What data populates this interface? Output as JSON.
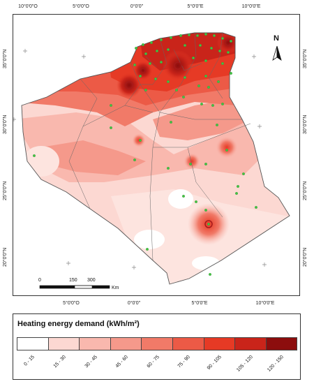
{
  "top_axis_labels": [
    "10°0'0\"O",
    "5°0'0\"O",
    "0°0'0\"",
    "5°0'0\"E",
    "10°0'0\"E"
  ],
  "bottom_axis_labels": [
    "5°0'0\"O",
    "0°0'0\"",
    "5°0'0\"E",
    "10°0'0\"E"
  ],
  "left_axis_labels": [
    "35°0'0\"N",
    "30°0'0\"N",
    "25°0'0\"N",
    "20°0'0\"N"
  ],
  "right_axis_labels": [
    "35°0'0\"N",
    "30°0'0\"N",
    "25°0'0\"N",
    "20°0'0\"N"
  ],
  "north_arrow": {
    "label": "N",
    "icon": "north-arrow-icon"
  },
  "scale_bar": {
    "ticks": [
      "0",
      "150",
      "300"
    ],
    "unit": "Km"
  },
  "legend": {
    "title": "Heating energy demand (kWh/m²)",
    "classes": [
      {
        "label": "0 - 15",
        "color": "#ffffff"
      },
      {
        "label": "15 - 30",
        "color": "#fcd8d2"
      },
      {
        "label": "30 - 45",
        "color": "#f9b8ae"
      },
      {
        "label": "45 - 60",
        "color": "#f5998b"
      },
      {
        "label": "60 - 75",
        "color": "#f17a68"
      },
      {
        "label": "75 - 90",
        "color": "#ec5a46"
      },
      {
        "label": "90 - 105",
        "color": "#e63a25"
      },
      {
        "label": "105 - 120",
        "color": "#c9241a"
      },
      {
        "label": "120 - 150",
        "color": "#8c0d0d"
      }
    ]
  },
  "colors": {
    "station_marker": "#44c244",
    "hotspot_ring": "#a61a1a",
    "boundary": "#555555",
    "grid_cross": "#888888"
  }
}
